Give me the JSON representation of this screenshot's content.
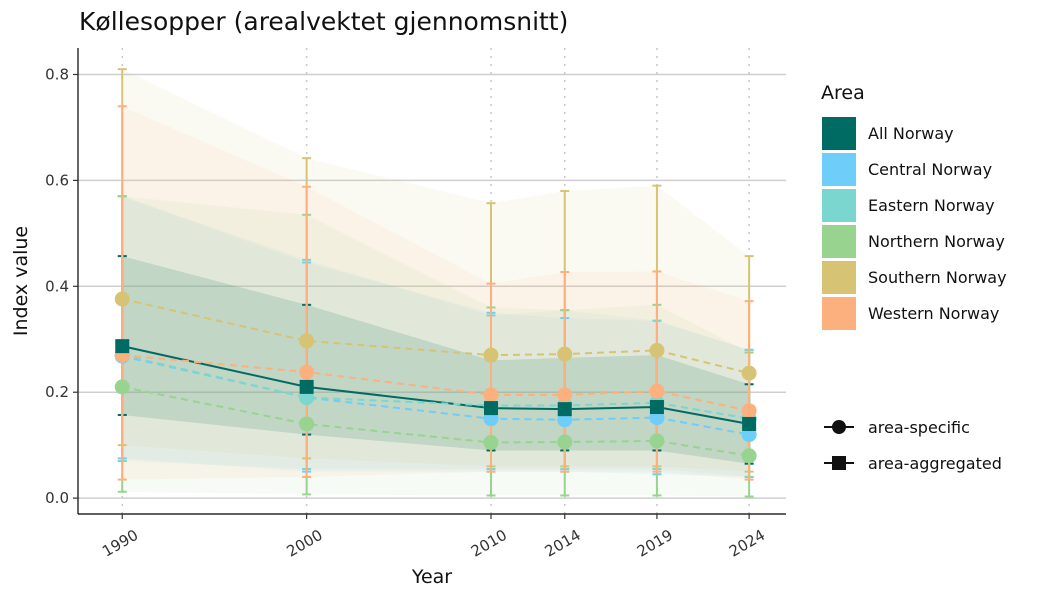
{
  "chart_data": {
    "type": "line",
    "title": "Køllesopper (arealvektet gjennomsnitt)",
    "xlabel": "Year",
    "ylabel": "Index value",
    "x": [
      1990,
      2000,
      2010,
      2014,
      2019,
      2024
    ],
    "x_ticks": [
      "1990",
      "2000",
      "2010",
      "2014",
      "2019",
      "2024"
    ],
    "ylim": [
      -0.03,
      0.85
    ],
    "y_ticks": [
      "0.0",
      "0.2",
      "0.4",
      "0.6",
      "0.8"
    ],
    "y_tick_values": [
      0.0,
      0.2,
      0.4,
      0.6,
      0.8
    ],
    "grid": "horizontal major lines; vertical dotted lines at years",
    "legend": {
      "title": "Area",
      "placement": "right",
      "shape_entries": [
        "area-specific",
        "area-aggregated"
      ]
    },
    "series": [
      {
        "name": "All Norway",
        "color": "#006b63",
        "marker": "square",
        "line": "solid",
        "values": [
          0.287,
          0.21,
          0.17,
          0.168,
          0.172,
          0.14
        ],
        "lower": [
          0.157,
          0.12,
          0.09,
          0.09,
          0.09,
          0.065
        ],
        "upper": [
          0.457,
          0.365,
          0.26,
          0.265,
          0.27,
          0.215
        ]
      },
      {
        "name": "Central Norway",
        "color": "#6ecdf9",
        "marker": "circle",
        "line": "dashed",
        "values": [
          0.268,
          0.19,
          0.15,
          0.148,
          0.152,
          0.12
        ],
        "lower": [
          0.075,
          0.05,
          0.05,
          0.05,
          0.045,
          0.04
        ],
        "upper": [
          0.57,
          0.445,
          0.35,
          0.34,
          0.335,
          0.28
        ]
      },
      {
        "name": "Eastern Norway",
        "color": "#7ad6ce",
        "marker": "circle",
        "line": "dashed",
        "values": [
          0.27,
          0.19,
          0.175,
          0.175,
          0.18,
          0.15
        ],
        "lower": [
          0.07,
          0.055,
          0.055,
          0.055,
          0.055,
          0.04
        ],
        "upper": [
          0.57,
          0.45,
          0.345,
          0.355,
          0.335,
          0.28
        ]
      },
      {
        "name": "Northern Norway",
        "color": "#98d490",
        "marker": "circle",
        "line": "dashed",
        "values": [
          0.21,
          0.14,
          0.105,
          0.106,
          0.108,
          0.08
        ],
        "lower": [
          0.012,
          0.007,
          0.005,
          0.005,
          0.005,
          0.003
        ],
        "upper": [
          0.57,
          0.535,
          0.36,
          0.355,
          0.365,
          0.275
        ]
      },
      {
        "name": "Southern Norway",
        "color": "#d6c474",
        "marker": "circle",
        "line": "dashed",
        "values": [
          0.376,
          0.297,
          0.27,
          0.272,
          0.279,
          0.236
        ],
        "lower": [
          0.1,
          0.075,
          0.06,
          0.06,
          0.06,
          0.05
        ],
        "upper": [
          0.81,
          0.642,
          0.557,
          0.58,
          0.59,
          0.457
        ]
      },
      {
        "name": "Western Norway",
        "color": "#fcb07e",
        "marker": "circle",
        "line": "dashed",
        "values": [
          0.27,
          0.238,
          0.195,
          0.195,
          0.202,
          0.165
        ],
        "lower": [
          0.035,
          0.04,
          0.05,
          0.05,
          0.05,
          0.035
        ],
        "upper": [
          0.74,
          0.588,
          0.405,
          0.427,
          0.428,
          0.372
        ]
      }
    ]
  }
}
